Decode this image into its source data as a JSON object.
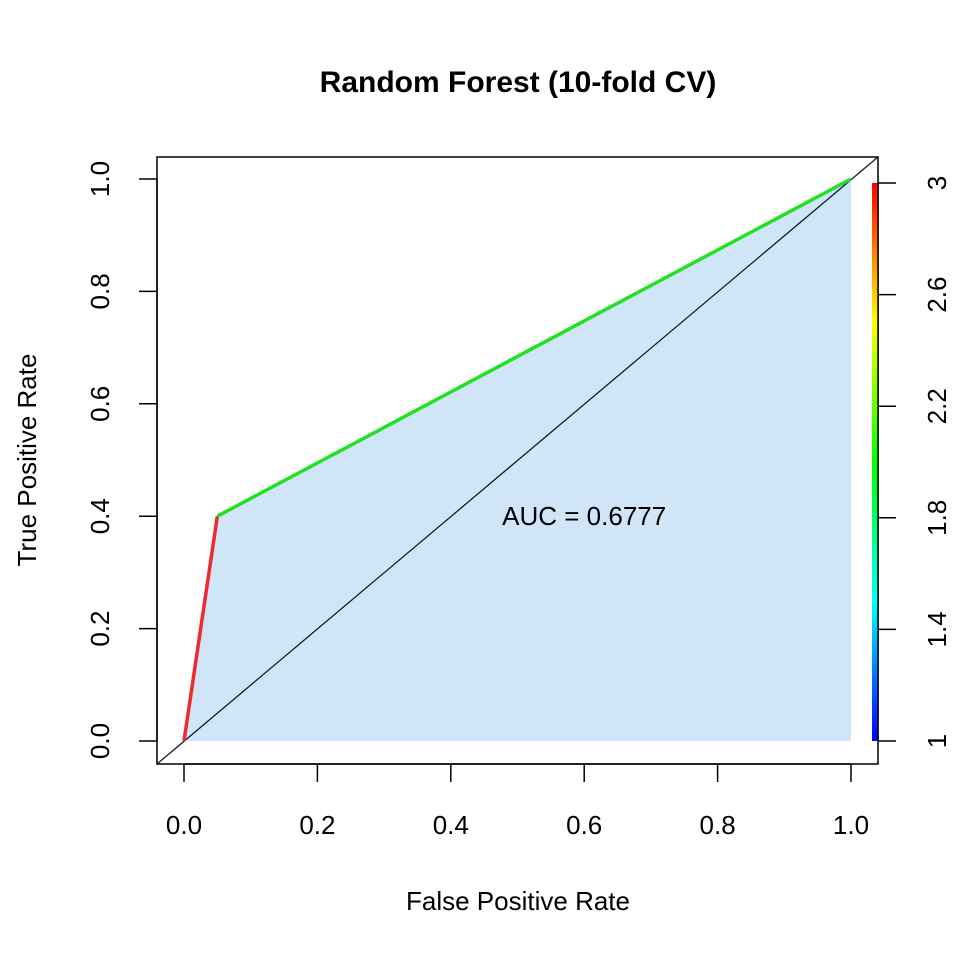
{
  "chart_data": {
    "type": "line",
    "title": "Random Forest (10-fold CV)",
    "xlabel": "False Positive Rate",
    "ylabel": "True Positive Rate",
    "xlim": [
      0,
      1
    ],
    "ylim": [
      0,
      1
    ],
    "x_ticks": [
      "0.0",
      "0.2",
      "0.4",
      "0.6",
      "0.8",
      "1.0"
    ],
    "y_ticks": [
      "0.0",
      "0.2",
      "0.4",
      "0.6",
      "0.8",
      "1.0"
    ],
    "grid": false,
    "roc_curve": {
      "points": [
        {
          "x": 0.0,
          "y": 0.0,
          "cutoff": 3
        },
        {
          "x": 0.05,
          "y": 0.4,
          "cutoff": 2
        },
        {
          "x": 1.0,
          "y": 1.0,
          "cutoff": 1
        }
      ],
      "segment_colors": [
        "#ee2a2a",
        "#22e022"
      ]
    },
    "auc_fill_color": "#d0e6f8",
    "diagonal": {
      "x": [
        0,
        1
      ],
      "y": [
        0,
        1
      ],
      "color": "#0b1f3a"
    },
    "annotation": {
      "text": "AUC = 0.6777",
      "x": 0.6,
      "y": 0.4
    },
    "colorbar": {
      "range": [
        1,
        3
      ],
      "ticks": [
        "1",
        "1.4",
        "1.8",
        "2.2",
        "2.6",
        "3"
      ],
      "tick_values": [
        1,
        1.4,
        1.8,
        2.2,
        2.6,
        3
      ],
      "colors": [
        "#0000ff",
        "#00ffff",
        "#00ff00",
        "#ffff00",
        "#ff0000"
      ]
    }
  }
}
